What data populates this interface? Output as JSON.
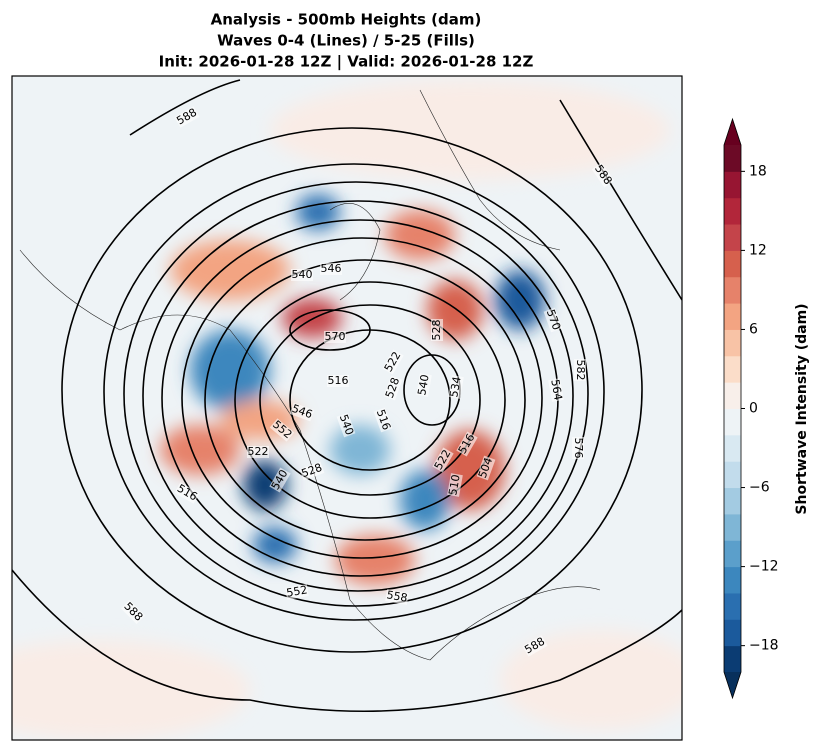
{
  "title": [
    "Analysis - 500mb Heights (dam)",
    "Waves 0-4 (Lines) / 5-25 (Fills)",
    "Init: 2026-01-28 12Z | Valid: 2026-01-28 12Z"
  ],
  "colorbar": {
    "label": "Shortwave Intensity (dam)",
    "lim": [
      -20,
      20
    ],
    "ticks": [
      {
        "value": -18,
        "label": "−18"
      },
      {
        "value": -12,
        "label": "−12"
      },
      {
        "value": -6,
        "label": "−6"
      },
      0,
      6,
      12,
      18
    ],
    "colors": [
      "#0b3c73",
      "#1b5a9c",
      "#2a6fb0",
      "#3c87be",
      "#5b9fcb",
      "#7fb6d6",
      "#a3cbe2",
      "#c2dcec",
      "#d9e9f2",
      "#eef3f6",
      "#f8efea",
      "#fbddc9",
      "#f8c3a6",
      "#f3a482",
      "#e6826a",
      "#d6604d",
      "#c4444a",
      "#b2263a",
      "#971532",
      "#6c0a26"
    ],
    "extend_colors": [
      "#08305c",
      "#67001f"
    ]
  },
  "contour_labels": [
    588,
    588,
    540,
    546,
    570,
    528,
    522,
    516,
    528,
    540,
    534,
    570,
    564,
    582,
    576,
    546,
    552,
    540,
    516,
    528,
    522,
    540,
    516,
    516,
    522,
    510,
    504,
    552,
    558,
    588,
    588
  ]
}
